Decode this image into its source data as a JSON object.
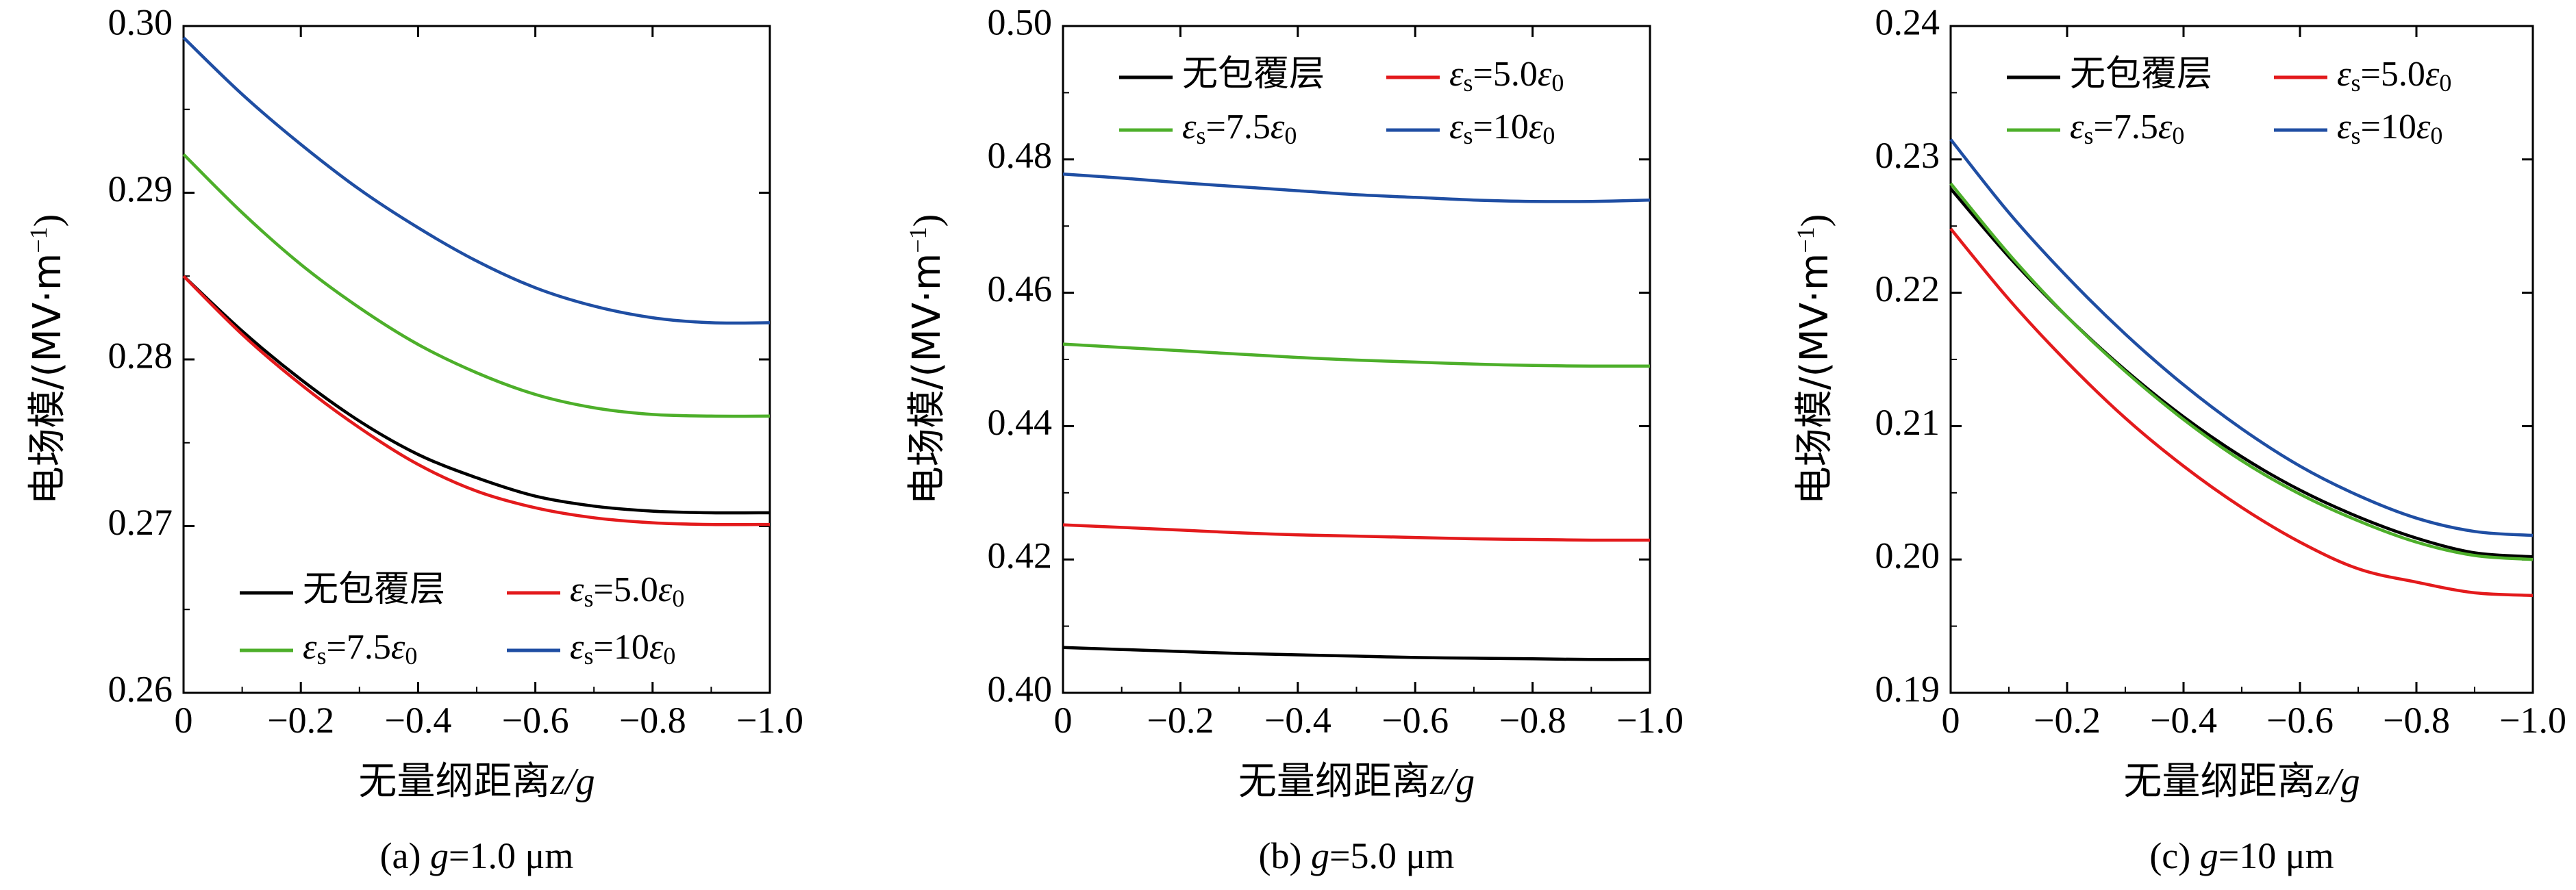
{
  "series_styles": [
    {
      "key": "none",
      "color": "#000000"
    },
    {
      "key": "eps5",
      "color": "#e31a1c"
    },
    {
      "key": "eps75",
      "color": "#4daf2a"
    },
    {
      "key": "eps10",
      "color": "#1f4ea3"
    }
  ],
  "legend_labels": {
    "none": "无包覆层",
    "eps5": {
      "sym": "ε",
      "sub": "s",
      "mid": "=5.0",
      "sym2": "ε",
      "sub2": "0"
    },
    "eps75": {
      "sym": "ε",
      "sub": "s",
      "mid": "=7.5",
      "sym2": "ε",
      "sub2": "0"
    },
    "eps10": {
      "sym": "ε",
      "sub": "s",
      "mid": "=10",
      "sym2": "ε",
      "sub2": "0"
    }
  },
  "chart_data": [
    {
      "type": "line",
      "caption_prefix": "(a) ",
      "caption_var": "g",
      "caption_suffix": "=1.0 μm",
      "xlabel_text": "无量纲距离",
      "xlabel_var": "z/g",
      "ylabel_text": "电场模/(MV·m",
      "ylabel_sup": "−1",
      "ylabel_end": ")",
      "xlim": [
        0,
        -1.0
      ],
      "ylim": [
        0.26,
        0.3
      ],
      "xticks": [
        0,
        -0.2,
        -0.4,
        -0.6,
        -0.8,
        -1.0
      ],
      "xtick_labels": [
        "0",
        "−0.2",
        "−0.4",
        "−0.6",
        "−0.8",
        "−1.0"
      ],
      "yticks": [
        0.26,
        0.27,
        0.28,
        0.29,
        0.3
      ],
      "ytick_labels": [
        "0.26",
        "0.27",
        "0.28",
        "0.29",
        "0.30"
      ],
      "legend_position": "bottom-left",
      "x": [
        0,
        -0.1,
        -0.2,
        -0.3,
        -0.4,
        -0.5,
        -0.6,
        -0.7,
        -0.8,
        -0.9,
        -1.0
      ],
      "series": [
        {
          "key": "none",
          "values": [
            0.285,
            0.2817,
            0.2788,
            0.2763,
            0.2743,
            0.2729,
            0.2718,
            0.2712,
            0.2709,
            0.2708,
            0.2708
          ]
        },
        {
          "key": "eps5",
          "values": [
            0.285,
            0.2815,
            0.2785,
            0.2759,
            0.2737,
            0.2721,
            0.2711,
            0.2705,
            0.2702,
            0.2701,
            0.2701
          ]
        },
        {
          "key": "eps75",
          "values": [
            0.2923,
            0.2888,
            0.2857,
            0.2831,
            0.2809,
            0.2792,
            0.2779,
            0.2771,
            0.2767,
            0.2766,
            0.2766
          ]
        },
        {
          "key": "eps10",
          "values": [
            0.2993,
            0.2959,
            0.2929,
            0.2902,
            0.2879,
            0.2859,
            0.2843,
            0.2832,
            0.2825,
            0.2822,
            0.2822
          ]
        }
      ]
    },
    {
      "type": "line",
      "caption_prefix": "(b) ",
      "caption_var": "g",
      "caption_suffix": "=5.0 μm",
      "xlabel_text": "无量纲距离",
      "xlabel_var": "z/g",
      "ylabel_text": "电场模/(MV·m",
      "ylabel_sup": "−1",
      "ylabel_end": ")",
      "xlim": [
        0,
        -1.0
      ],
      "ylim": [
        0.4,
        0.5
      ],
      "xticks": [
        0,
        -0.2,
        -0.4,
        -0.6,
        -0.8,
        -1.0
      ],
      "xtick_labels": [
        "0",
        "−0.2",
        "−0.4",
        "−0.6",
        "−0.8",
        "−1.0"
      ],
      "yticks": [
        0.4,
        0.42,
        0.44,
        0.46,
        0.48,
        0.5
      ],
      "ytick_labels": [
        "0.40",
        "0.42",
        "0.44",
        "0.46",
        "0.48",
        "0.50"
      ],
      "legend_position": "top",
      "x": [
        0,
        -0.1,
        -0.2,
        -0.3,
        -0.4,
        -0.5,
        -0.6,
        -0.7,
        -0.8,
        -0.9,
        -1.0
      ],
      "series": [
        {
          "key": "none",
          "values": [
            0.4068,
            0.4065,
            0.4062,
            0.4059,
            0.4057,
            0.4055,
            0.4053,
            0.4052,
            0.4051,
            0.405,
            0.405
          ]
        },
        {
          "key": "eps5",
          "values": [
            0.4252,
            0.4248,
            0.4244,
            0.424,
            0.4237,
            0.4235,
            0.4233,
            0.4231,
            0.423,
            0.4229,
            0.4229
          ]
        },
        {
          "key": "eps75",
          "values": [
            0.4523,
            0.4518,
            0.4513,
            0.4508,
            0.4503,
            0.4499,
            0.4496,
            0.4493,
            0.4491,
            0.449,
            0.449
          ]
        },
        {
          "key": "eps10",
          "values": [
            0.4778,
            0.4772,
            0.4765,
            0.4759,
            0.4753,
            0.4747,
            0.4743,
            0.4739,
            0.4737,
            0.4737,
            0.4739
          ]
        }
      ]
    },
    {
      "type": "line",
      "caption_prefix": "(c) ",
      "caption_var": "g",
      "caption_suffix": "=10 μm",
      "xlabel_text": "无量纲距离",
      "xlabel_var": "z/g",
      "ylabel_text": "电场模/(MV·m",
      "ylabel_sup": "−1",
      "ylabel_end": ")",
      "xlim": [
        0,
        -1.0
      ],
      "ylim": [
        0.19,
        0.24
      ],
      "xticks": [
        0,
        -0.2,
        -0.4,
        -0.6,
        -0.8,
        -1.0
      ],
      "xtick_labels": [
        "0",
        "−0.2",
        "−0.4",
        "−0.6",
        "−0.8",
        "−1.0"
      ],
      "yticks": [
        0.19,
        0.2,
        0.21,
        0.22,
        0.23,
        0.24
      ],
      "ytick_labels": [
        "0.19",
        "0.20",
        "0.21",
        "0.22",
        "0.23",
        "0.24"
      ],
      "legend_position": "top",
      "x": [
        0,
        -0.1,
        -0.2,
        -0.3,
        -0.4,
        -0.5,
        -0.6,
        -0.7,
        -0.8,
        -0.9,
        -1.0
      ],
      "series": [
        {
          "key": "none",
          "values": [
            0.2278,
            0.2227,
            0.2182,
            0.2142,
            0.2107,
            0.2077,
            0.2052,
            0.2032,
            0.2016,
            0.2005,
            0.2002
          ]
        },
        {
          "key": "eps5",
          "values": [
            0.2248,
            0.2195,
            0.2148,
            0.2106,
            0.207,
            0.2039,
            0.2013,
            0.1993,
            0.1983,
            0.1975,
            0.1973
          ]
        },
        {
          "key": "eps75",
          "values": [
            0.2282,
            0.2229,
            0.2182,
            0.2141,
            0.2105,
            0.2074,
            0.2049,
            0.2029,
            0.2013,
            0.2003,
            0.2
          ]
        },
        {
          "key": "eps10",
          "values": [
            0.2315,
            0.226,
            0.2212,
            0.2169,
            0.2131,
            0.2098,
            0.207,
            0.2048,
            0.2031,
            0.2021,
            0.2018
          ]
        }
      ]
    }
  ]
}
